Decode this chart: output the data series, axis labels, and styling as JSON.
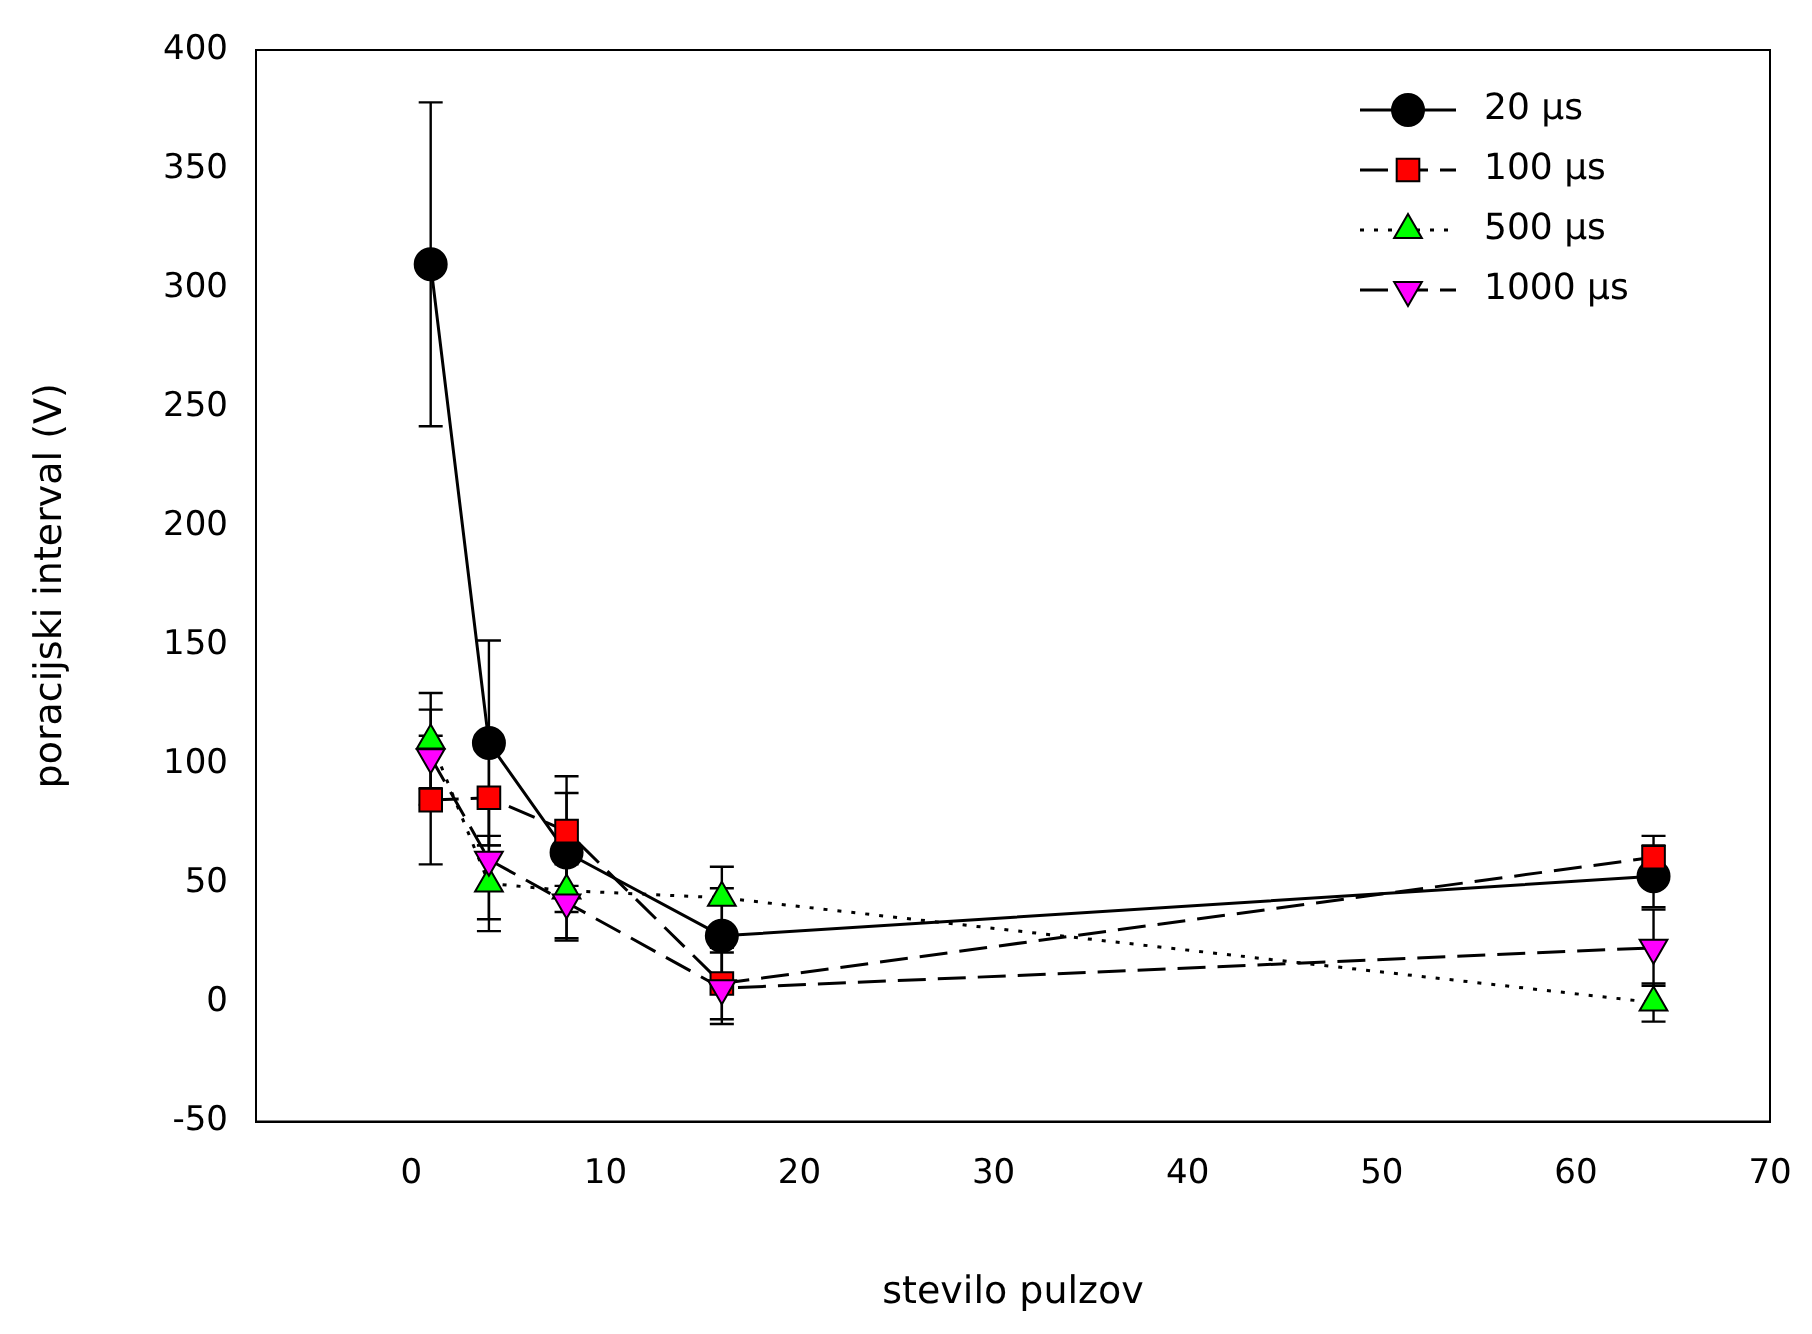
{
  "chart_data": {
    "type": "line",
    "xlabel": "stevilo pulzov",
    "ylabel": "poracijski interval (V)",
    "x": [
      1,
      4,
      8,
      16,
      64
    ],
    "xlim": [
      -8,
      70
    ],
    "xticks": [
      0,
      10,
      20,
      30,
      40,
      50,
      60,
      70
    ],
    "ylim": [
      -50,
      400
    ],
    "yticks": [
      -50,
      0,
      50,
      100,
      150,
      200,
      250,
      300,
      350,
      400
    ],
    "grid": false,
    "legend": "top right",
    "series": [
      {
        "name": "20 µs",
        "color": "#000000",
        "marker": "circle",
        "line_style": "solid",
        "values": [
          310,
          109,
          63,
          28,
          53
        ],
        "errors": [
          68,
          43,
          25,
          20,
          13
        ]
      },
      {
        "name": "100 µs",
        "color": "#ff0000",
        "marker": "square",
        "line_style": "dashed",
        "values": [
          85,
          86,
          72,
          8,
          61
        ],
        "errors": [
          27,
          20,
          23,
          15,
          9
        ]
      },
      {
        "name": "500 µs",
        "color": "#00ff00",
        "marker": "triangle",
        "line_style": "dotted",
        "values": [
          110,
          50,
          47,
          44,
          0
        ],
        "errors": [
          20,
          20,
          20,
          13,
          8
        ]
      },
      {
        "name": "1000 µs",
        "color": "#ff00ff",
        "marker": "triangle-down",
        "line_style": "dashed",
        "values": [
          103,
          60,
          42,
          6,
          23
        ],
        "errors": [
          20,
          25,
          16,
          15,
          16
        ]
      }
    ]
  }
}
